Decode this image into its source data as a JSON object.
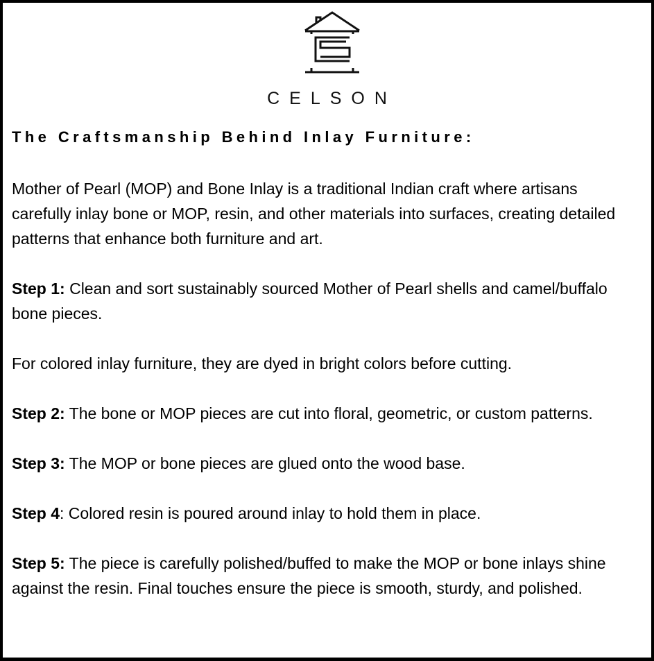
{
  "logo": {
    "brand_name": "CELSON",
    "icon": "house-c-logo"
  },
  "heading": "The Craftsmanship Behind Inlay Furniture:",
  "intro": "Mother of Pearl (MOP) and Bone Inlay is a traditional Indian craft where artisans carefully inlay bone or MOP, resin, and other materials into surfaces, creating detailed patterns that enhance both furniture and art.",
  "steps": [
    {
      "label": "Step 1:",
      "text": " Clean and sort sustainably sourced Mother of Pearl shells and camel/buffalo bone pieces."
    },
    {
      "note": "For colored inlay furniture, they are dyed in bright colors before cutting."
    },
    {
      "label": "Step 2:",
      "text": " The bone or MOP pieces are cut into floral, geometric, or custom patterns."
    },
    {
      "label": "Step 3:",
      "text": " The MOP or bone pieces are glued onto the wood base."
    },
    {
      "label": "Step 4",
      "text": ": Colored resin is poured around inlay to hold them in place."
    },
    {
      "label": "Step 5:",
      "text": " The piece is carefully polished/buffed to make the MOP or bone inlays shine against the resin. Final touches ensure the piece is smooth, sturdy, and polished."
    }
  ]
}
